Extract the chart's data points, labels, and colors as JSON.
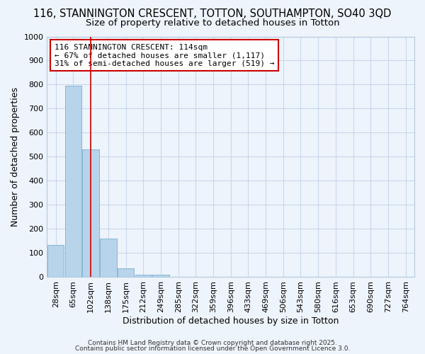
{
  "title1": "116, STANNINGTON CRESCENT, TOTTON, SOUTHAMPTON, SO40 3QD",
  "title2": "Size of property relative to detached houses in Totton",
  "xlabel": "Distribution of detached houses by size in Totton",
  "ylabel": "Number of detached properties",
  "categories": [
    "28sqm",
    "65sqm",
    "102sqm",
    "138sqm",
    "175sqm",
    "212sqm",
    "249sqm",
    "285sqm",
    "322sqm",
    "359sqm",
    "396sqm",
    "433sqm",
    "469sqm",
    "506sqm",
    "543sqm",
    "580sqm",
    "616sqm",
    "653sqm",
    "690sqm",
    "727sqm",
    "764sqm"
  ],
  "values": [
    135,
    795,
    530,
    160,
    37,
    10,
    10,
    0,
    0,
    0,
    0,
    0,
    0,
    0,
    0,
    0,
    0,
    0,
    0,
    0,
    0
  ],
  "bar_color": "#b8d4ea",
  "bar_edge_color": "#7ab0d4",
  "grid_color": "#c8d8ec",
  "background_color": "#eef4fb",
  "red_line_x": 2.0,
  "annotation_text": "116 STANNINGTON CRESCENT: 114sqm\n← 67% of detached houses are smaller (1,117)\n31% of semi-detached houses are larger (519) →",
  "annotation_box_color": "white",
  "annotation_box_edge_color": "#cc0000",
  "ylim": [
    0,
    1000
  ],
  "yticks": [
    0,
    100,
    200,
    300,
    400,
    500,
    600,
    700,
    800,
    900,
    1000
  ],
  "footer1": "Contains HM Land Registry data © Crown copyright and database right 2025.",
  "footer2": "Contains public sector information licensed under the Open Government Licence 3.0.",
  "title1_fontsize": 10.5,
  "title2_fontsize": 9.5,
  "xlabel_fontsize": 9,
  "ylabel_fontsize": 9,
  "tick_fontsize": 8,
  "annotation_fontsize": 8,
  "footer_fontsize": 6.5
}
